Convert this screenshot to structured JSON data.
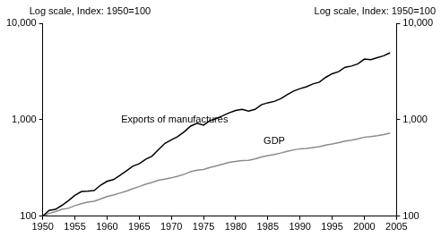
{
  "chart_data": {
    "type": "line",
    "log": "y",
    "grid": false,
    "y_label": "Log scale, Index: 1950=100",
    "y2_label": "Log scale, Index: 1950=100",
    "x": [
      1950,
      1951,
      1952,
      1953,
      1954,
      1955,
      1956,
      1957,
      1958,
      1959,
      1960,
      1961,
      1962,
      1963,
      1964,
      1965,
      1966,
      1967,
      1968,
      1969,
      1970,
      1971,
      1972,
      1973,
      1974,
      1975,
      1976,
      1977,
      1978,
      1979,
      1980,
      1981,
      1982,
      1983,
      1984,
      1985,
      1986,
      1987,
      1988,
      1989,
      1990,
      1991,
      1992,
      1993,
      1994,
      1995,
      1996,
      1997,
      1998,
      1999,
      2000,
      2001,
      2002,
      2003,
      2004
    ],
    "series": [
      {
        "name": "Exports of manufactures",
        "color": "#000000",
        "values": [
          100,
          115,
          118,
          130,
          145,
          165,
          180,
          182,
          185,
          210,
          230,
          240,
          265,
          295,
          330,
          350,
          390,
          420,
          490,
          570,
          620,
          670,
          750,
          860,
          920,
          880,
          980,
          1030,
          1100,
          1180,
          1250,
          1280,
          1230,
          1280,
          1430,
          1500,
          1550,
          1650,
          1820,
          1980,
          2100,
          2200,
          2350,
          2450,
          2750,
          3000,
          3150,
          3500,
          3600,
          3800,
          4250,
          4200,
          4400,
          4600,
          4950
        ]
      },
      {
        "name": "GDP",
        "color": "#8c8c8c",
        "values": [
          100,
          107,
          112,
          118,
          121,
          129,
          135,
          140,
          143,
          151,
          160,
          166,
          174,
          182,
          193,
          203,
          215,
          224,
          236,
          243,
          250,
          260,
          272,
          290,
          300,
          305,
          320,
          333,
          347,
          362,
          370,
          378,
          380,
          392,
          412,
          425,
          437,
          452,
          470,
          487,
          500,
          505,
          515,
          525,
          545,
          560,
          578,
          600,
          615,
          635,
          660,
          668,
          683,
          703,
          730
        ]
      }
    ],
    "annotations": [
      {
        "text": "Exports of manufactures",
        "x": 1970.5,
        "y": 1000
      },
      {
        "text": "GDP",
        "x": 1986,
        "y": 600
      }
    ],
    "xlim": [
      1950,
      2005
    ],
    "xticks": [
      1950,
      1955,
      1960,
      1965,
      1970,
      1975,
      1980,
      1985,
      1990,
      1995,
      2000,
      2005
    ],
    "ylim": [
      100,
      10000
    ],
    "yticks": [
      100,
      {
        "value": 1000,
        "label": "1,000"
      },
      {
        "value": 10000,
        "label": "10,000"
      }
    ],
    "y2lim": [
      100,
      10000
    ],
    "y2ticks": [
      100,
      {
        "value": 1000,
        "label": "1,000"
      },
      {
        "value": 10000,
        "label": "10,000"
      }
    ]
  }
}
